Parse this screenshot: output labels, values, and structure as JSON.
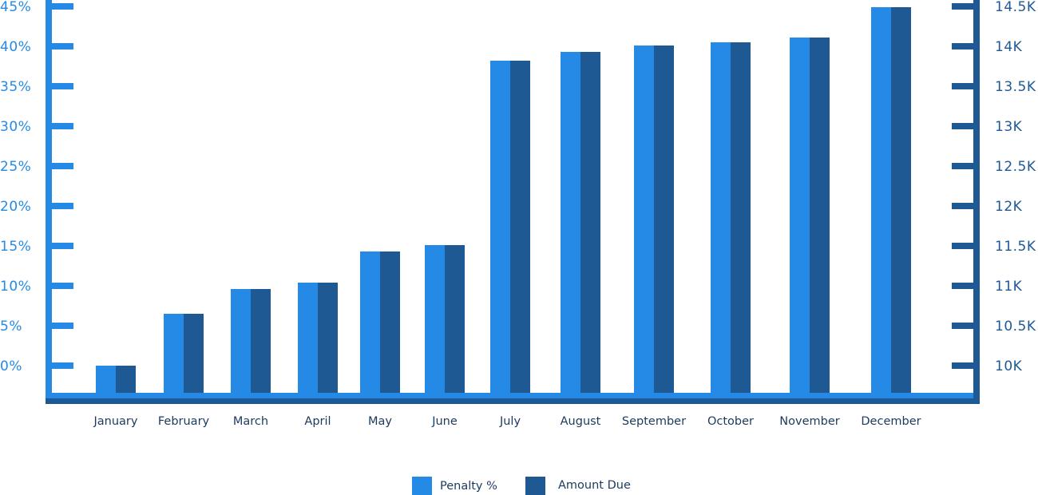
{
  "colors": {
    "penalty": "#2589e6",
    "amount": "#1f5994",
    "text": "#1b3a5c"
  },
  "chart_data": {
    "type": "bar",
    "categories": [
      "January",
      "February",
      "March",
      "April",
      "May",
      "June",
      "July",
      "August",
      "September",
      "October",
      "November",
      "December"
    ],
    "series": [
      {
        "name": "Penalty %",
        "axis": "left",
        "values": [
          0,
          6.5,
          9.6,
          10.4,
          14.3,
          15.1,
          38.2,
          39.3,
          40.1,
          40.5,
          41.1,
          44.9
        ]
      },
      {
        "name": "Amount Due",
        "axis": "right",
        "values": [
          10000,
          10650,
          10960,
          11040,
          11430,
          11510,
          13820,
          13930,
          14010,
          14050,
          14110,
          14490
        ]
      }
    ],
    "y_left": {
      "min": 0,
      "max": 45,
      "ticks": [
        0,
        5,
        10,
        15,
        20,
        25,
        30,
        35,
        40,
        45
      ],
      "tick_labels": [
        "0%",
        "5%",
        "10%",
        "15%",
        "20%",
        "25%",
        "30%",
        "35%",
        "40%",
        "45%"
      ]
    },
    "y_right": {
      "min": 10000,
      "max": 14500,
      "ticks": [
        10000,
        10500,
        11000,
        11500,
        12000,
        12500,
        13000,
        13500,
        14000,
        14500
      ],
      "tick_labels": [
        "10K",
        "10.5K",
        "11K",
        "11.5K",
        "12K",
        "12.5K",
        "13K",
        "13.5K",
        "14K",
        "14.5K"
      ]
    },
    "grid": false,
    "legend_position": "bottom"
  }
}
